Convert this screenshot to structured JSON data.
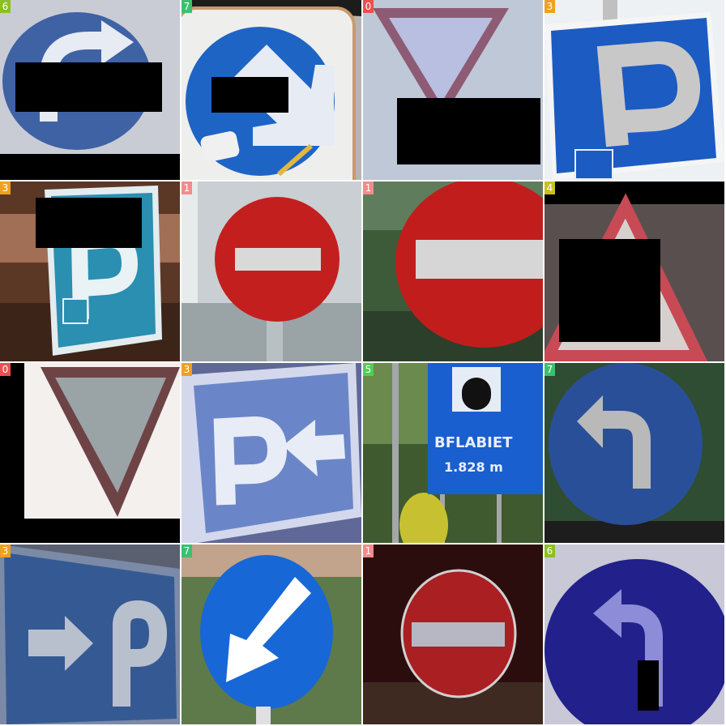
{
  "tiles": [
    {
      "label": "6",
      "icon": "turn-right-mandatory-icon"
    },
    {
      "label": "7",
      "icon": "keep-right-arrow-icon"
    },
    {
      "label": "0",
      "icon": "yield-triangle-icon"
    },
    {
      "label": "3",
      "icon": "parking-disabled-icon"
    },
    {
      "label": "3",
      "icon": "parking-disabled-icon"
    },
    {
      "label": "1",
      "icon": "no-entry-icon"
    },
    {
      "label": "1",
      "icon": "no-entry-icon"
    },
    {
      "label": "4",
      "icon": "warning-triangle-icon"
    },
    {
      "label": "0",
      "icon": "yield-triangle-icon"
    },
    {
      "label": "3",
      "icon": "parking-arrow-left-icon"
    },
    {
      "label": "5",
      "icon": "tunnel-info-sign-icon",
      "text_line1": "BFLABIET",
      "text_line2": "1.828 m"
    },
    {
      "label": "7",
      "icon": "turn-left-mandatory-icon"
    },
    {
      "label": "3",
      "icon": "parking-arrow-right-icon"
    },
    {
      "label": "7",
      "icon": "keep-left-arrow-icon"
    },
    {
      "label": "1",
      "icon": "no-entry-icon"
    },
    {
      "label": "6",
      "icon": "turn-left-mandatory-icon"
    }
  ]
}
